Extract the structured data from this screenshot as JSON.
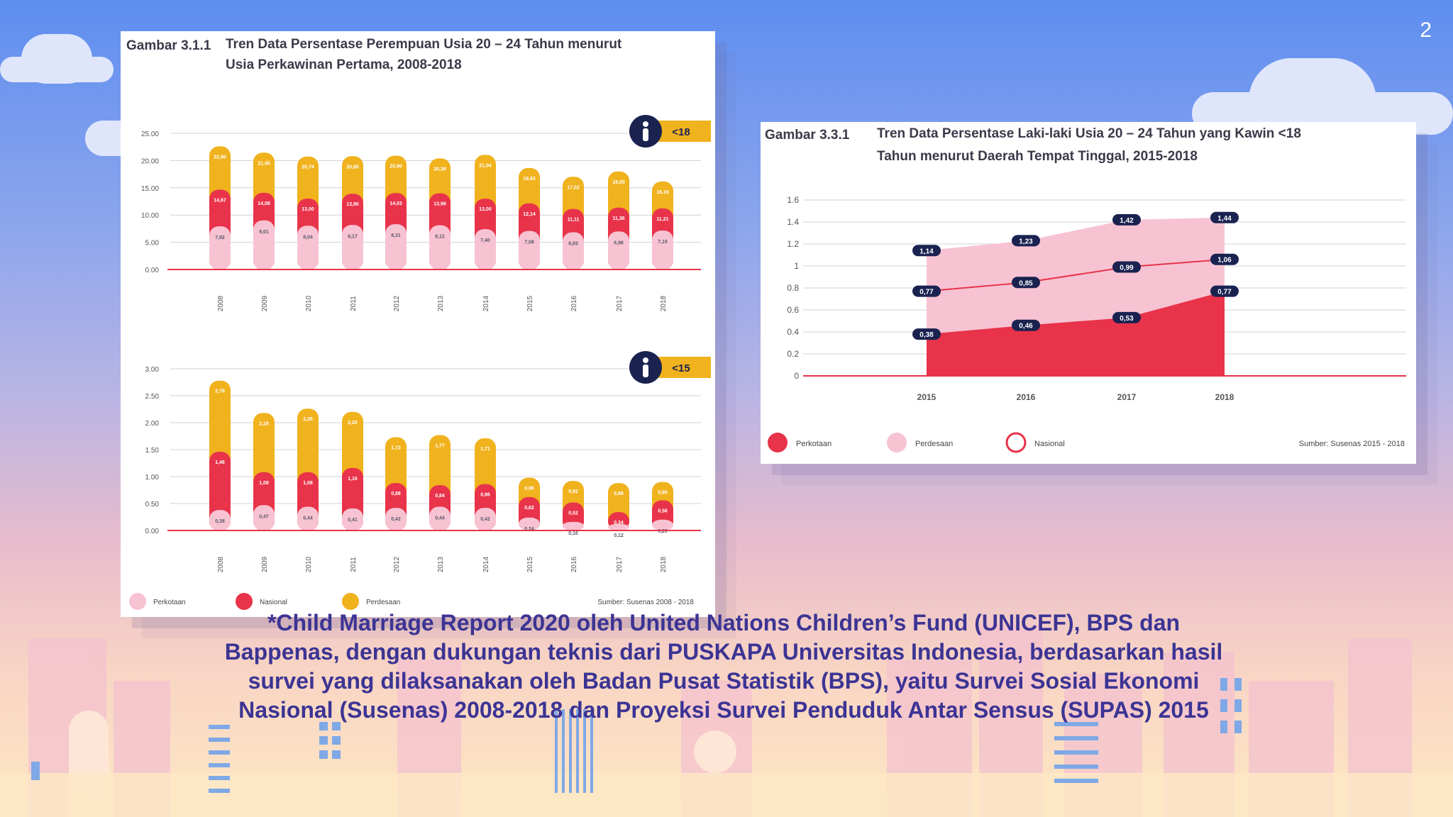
{
  "page": {
    "number": "2"
  },
  "colors": {
    "urban": "#e8334a",
    "rural": "#f7c3d3",
    "national": "#e8334a",
    "yellow": "#f0b21d",
    "navy": "#1a2250",
    "axis": "#e8334a"
  },
  "caption": "*Child Marriage Report 2020 oleh United Nations Children’s Fund (UNICEF), BPS dan Bappenas, dengan dukungan teknis dari PUSKAPA Universitas Indonesia, berdasarkan hasil survei yang dilaksanakan oleh Badan Pusat Statistik (BPS), yaitu Survei Sosial Ekonomi Nasional (Susenas) 2008-2018 dan Proyeksi Survei Penduduk Antar Sensus (SUPAS) 2015",
  "chart_data": [
    {
      "type": "bar",
      "figure_no": "Gambar 3.1.1",
      "title_line1": "Tren Data Persentase Perempuan Usia 20 – 24 Tahun menurut",
      "title_line2": "Usia Perkawinan Pertama, 2008-2018",
      "badge": "<18",
      "categories": [
        "2008",
        "2009",
        "2010",
        "2011",
        "2012",
        "2013",
        "2014",
        "2015",
        "2016",
        "2017",
        "2018"
      ],
      "ylim": [
        0,
        25
      ],
      "yticks": [
        "25.00",
        "20.00",
        "15.00",
        "10.00",
        "5.00",
        "0.00"
      ],
      "series": [
        {
          "name": "Perkotaan",
          "values": [
            7.92,
            9.01,
            8.04,
            8.17,
            8.31,
            8.12,
            7.4,
            7.08,
            6.83,
            6.98,
            7.15
          ],
          "labels": [
            "7,92",
            "9,01",
            "8,04",
            "8,17",
            "8,31",
            "8,12",
            "7,40",
            "7,08",
            "6,83",
            "6,98",
            "7,15"
          ]
        },
        {
          "name": "Nasional",
          "values": [
            14.67,
            14.08,
            13.0,
            13.9,
            14.03,
            13.98,
            13.0,
            12.14,
            11.11,
            11.36,
            11.21
          ],
          "labels": [
            "14,67",
            "14,08",
            "13,00",
            "13,90",
            "14,03",
            "13,98",
            "13,00",
            "12,14",
            "11,11",
            "11,36",
            "11,21"
          ]
        },
        {
          "name": "Perdesaan",
          "values": [
            22.6,
            21.45,
            20.74,
            20.8,
            20.9,
            20.39,
            21.04,
            18.63,
            17.02,
            18.0,
            16.16
          ],
          "labels": [
            "22,60",
            "21,45",
            "20,74",
            "20,80",
            "20,90",
            "20,39",
            "21,04",
            "18,63",
            "17,02",
            "18,00",
            "16,16"
          ]
        }
      ]
    },
    {
      "type": "bar",
      "badge": "<15",
      "categories": [
        "2008",
        "2009",
        "2010",
        "2011",
        "2012",
        "2013",
        "2014",
        "2015",
        "2016",
        "2017",
        "2018"
      ],
      "ylim": [
        0,
        3
      ],
      "yticks": [
        "3.00",
        "2.50",
        "2.00",
        "1.50",
        "1.00",
        "0.50",
        "0.00"
      ],
      "series": [
        {
          "name": "Perkotaan",
          "values": [
            0.38,
            0.47,
            0.44,
            0.41,
            0.42,
            0.44,
            0.42,
            0.24,
            0.16,
            0.12,
            0.2
          ],
          "labels": [
            "0,38",
            "0,47",
            "0,44",
            "0,41",
            "0,42",
            "0,44",
            "0,42",
            "0,24",
            "0,16",
            "0,12",
            "0,20"
          ]
        },
        {
          "name": "Nasional",
          "values": [
            1.46,
            1.08,
            1.08,
            1.16,
            0.88,
            0.84,
            0.86,
            0.62,
            0.52,
            0.34,
            0.56
          ],
          "labels": [
            "1,46",
            "1,08",
            "1,08",
            "1,16",
            "0,88",
            "0,84",
            "0,86",
            "0,62",
            "0,52",
            "0,34",
            "0,56"
          ]
        },
        {
          "name": "Perdesaan",
          "values": [
            2.78,
            2.18,
            2.26,
            2.2,
            1.73,
            1.77,
            1.71,
            0.98,
            0.92,
            0.88,
            0.9
          ],
          "labels": [
            "2,78",
            "2,18",
            "2,26",
            "2,20",
            "1,73",
            "1,77",
            "1,71",
            "0,98",
            "0,92",
            "0,88",
            "0,90"
          ]
        }
      ],
      "legend": [
        "Perkotaan",
        "Nasional",
        "Perdesaan"
      ],
      "source": "Sumber: Susenas 2008 - 2018"
    },
    {
      "type": "area",
      "figure_no": "Gambar 3.3.1",
      "title_line1": "Tren Data Persentase Laki-laki Usia 20 – 24 Tahun yang Kawin <18",
      "title_line2": "Tahun menurut Daerah Tempat Tinggal, 2015-2018",
      "x": [
        "2015",
        "2016",
        "2017",
        "2018"
      ],
      "ylim": [
        0,
        1.6
      ],
      "yticks": [
        "1.6",
        "1.4",
        "1.2",
        "1",
        "0.8",
        "0.6",
        "0.4",
        "0.2",
        "0"
      ],
      "series": [
        {
          "name": "Perkotaan",
          "values": [
            0.38,
            0.46,
            0.53,
            0.77
          ],
          "labels": [
            "0,38",
            "0,46",
            "0,53",
            "0,77"
          ]
        },
        {
          "name": "Perdesaan",
          "values": [
            1.14,
            1.23,
            1.42,
            1.44
          ],
          "labels": [
            "1,14",
            "1,23",
            "1,42",
            "1,44"
          ]
        },
        {
          "name": "Nasional",
          "values": [
            0.77,
            0.85,
            0.99,
            1.06
          ],
          "labels": [
            "0,77",
            "0,85",
            "0,99",
            "1,06"
          ]
        }
      ],
      "legend": [
        "Perkotaan",
        "Perdesaan",
        "Nasional"
      ],
      "source": "Sumber: Susenas 2015 - 2018"
    }
  ]
}
